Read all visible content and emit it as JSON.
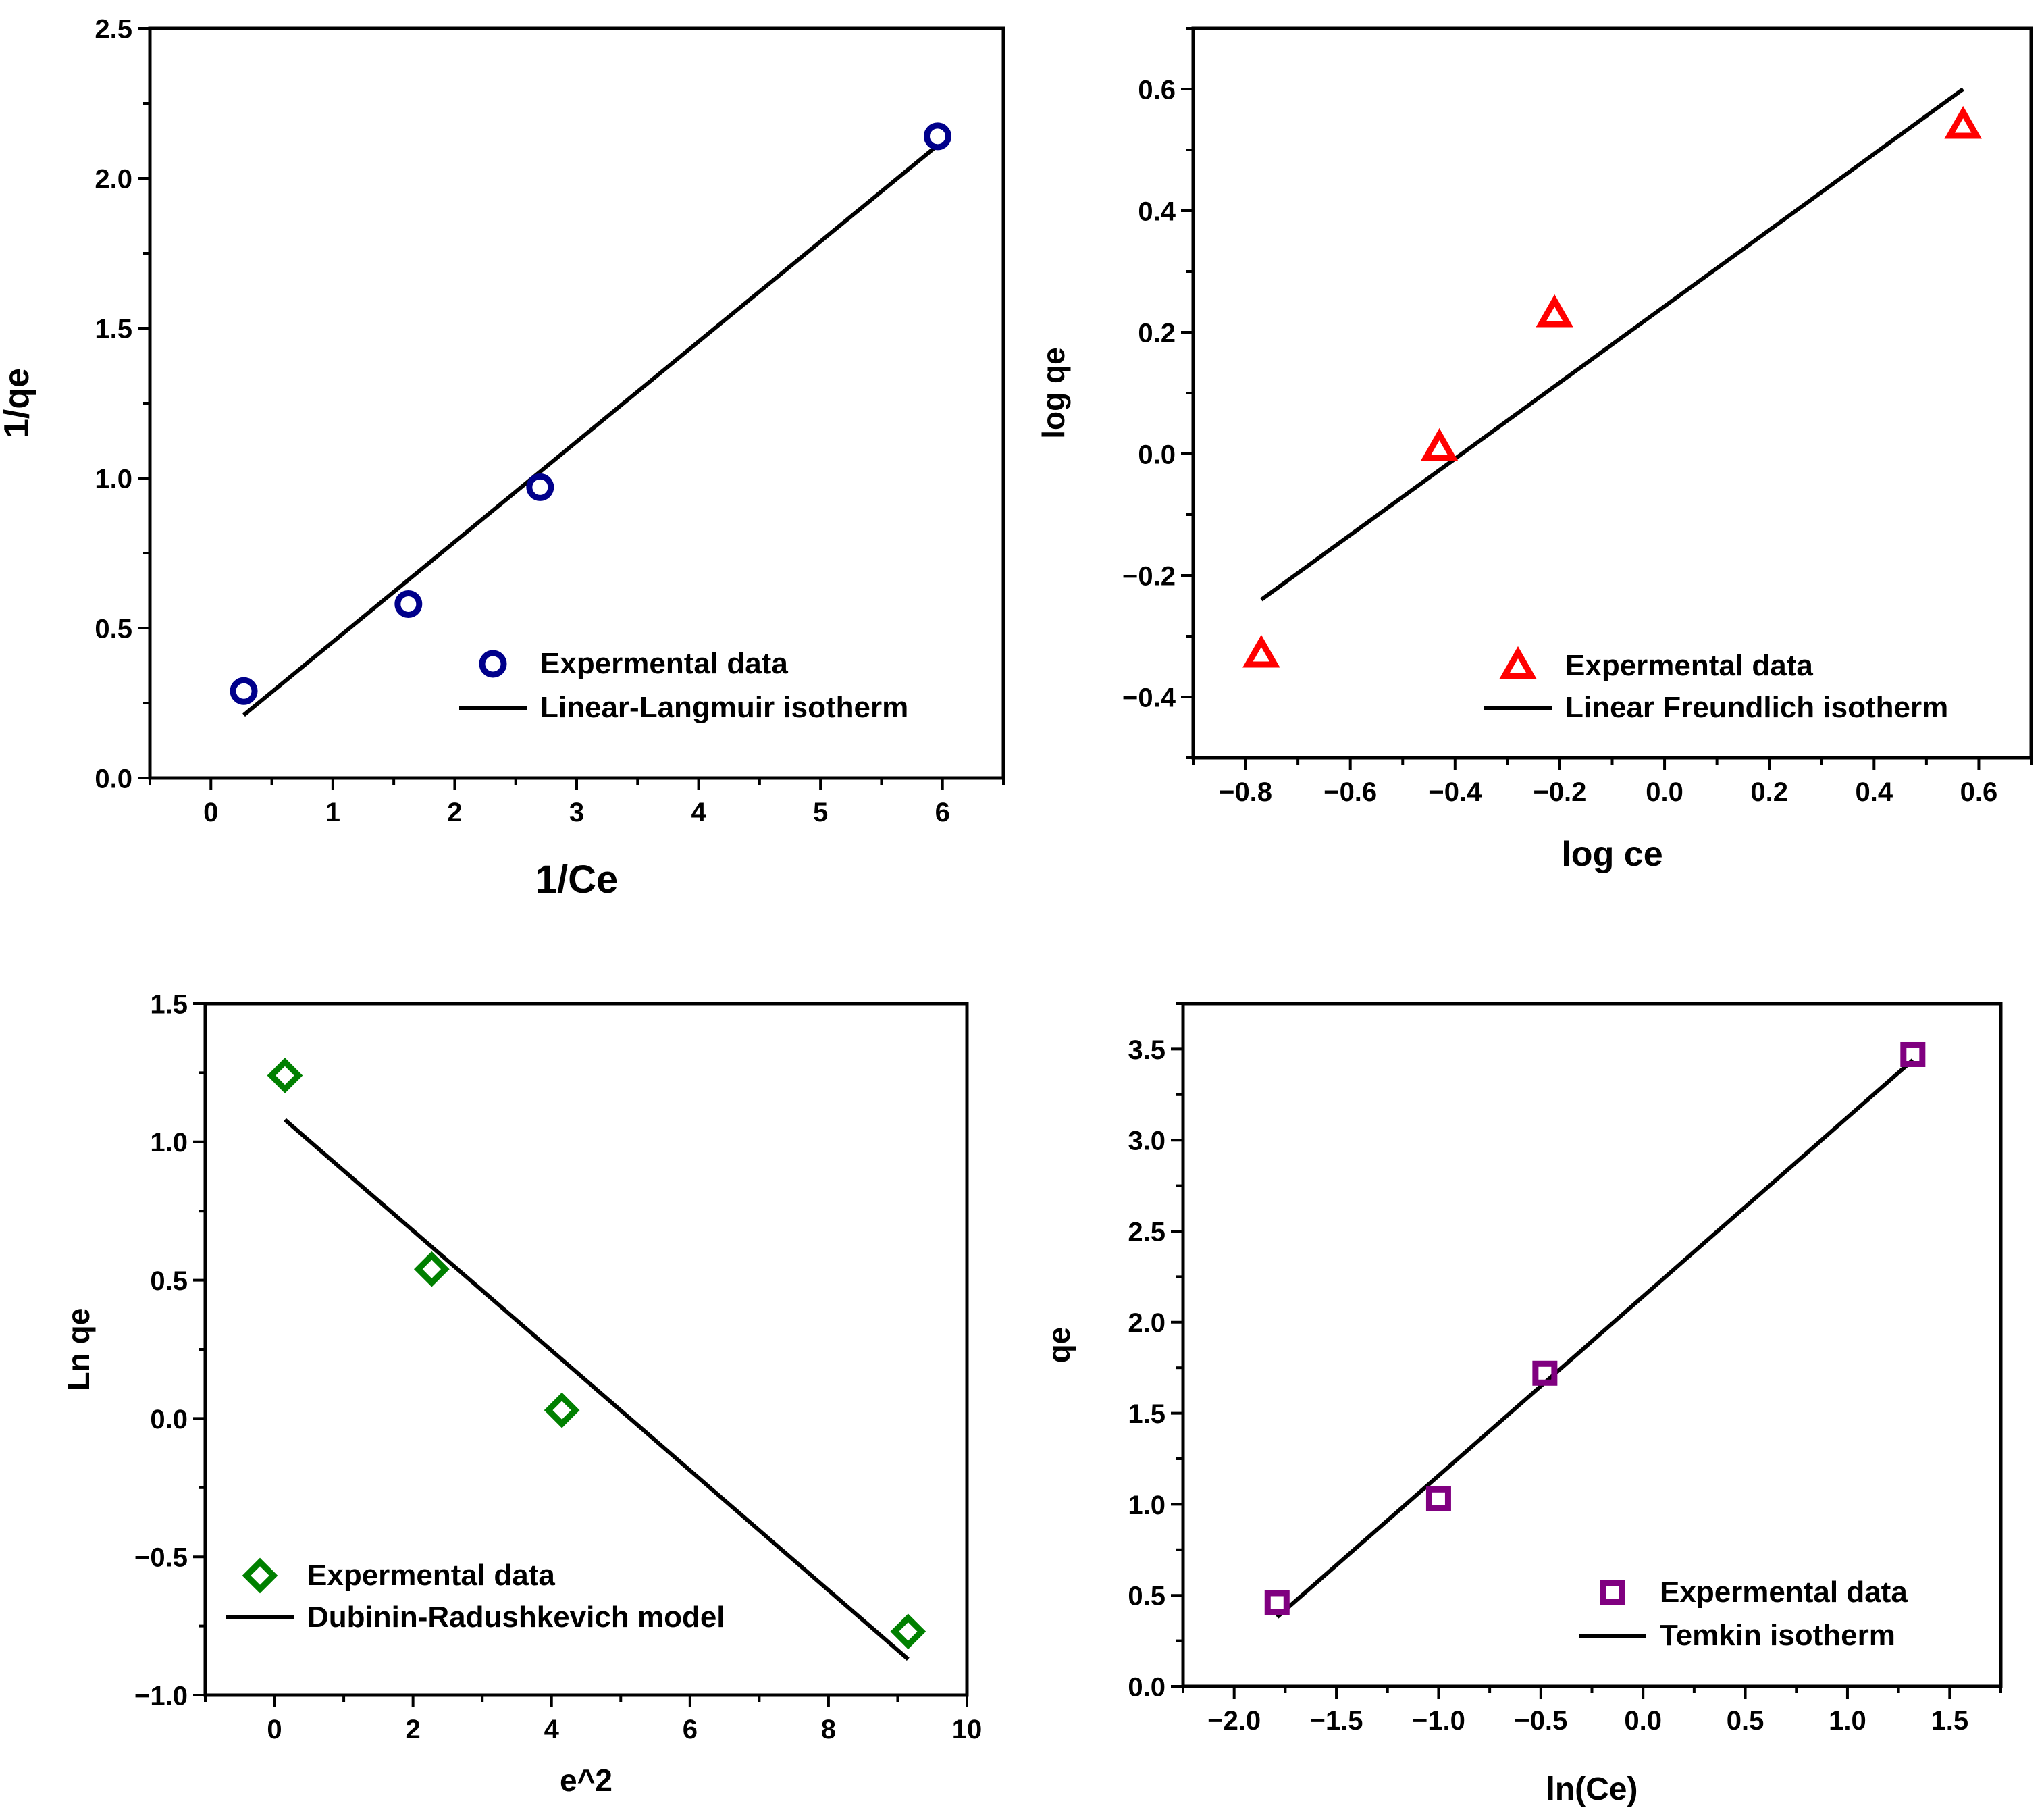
{
  "chart_data": [
    {
      "type": "scatter",
      "title": "",
      "xlabel": "1/Ce",
      "ylabel": "1/qe",
      "xlim": [
        -0.5,
        6.5
      ],
      "ylim": [
        0.0,
        2.5
      ],
      "xticks": [
        0,
        1,
        2,
        3,
        4,
        5,
        6
      ],
      "yticks": [
        0.0,
        0.5,
        1.0,
        1.5,
        2.0,
        2.5
      ],
      "xtick_labels": [
        "0",
        "1",
        "2",
        "3",
        "4",
        "5",
        "6"
      ],
      "ytick_labels": [
        "0.0",
        "0.5",
        "1.0",
        "1.5",
        "2.0",
        "2.5"
      ],
      "marker": "circle",
      "color": "#00008b",
      "series": [
        {
          "name": "Expermental data",
          "kind": "points",
          "x": [
            0.27,
            1.62,
            2.7,
            5.96
          ],
          "y": [
            0.29,
            0.58,
            0.97,
            2.14
          ]
        },
        {
          "name": "Linear-Langmuir isotherm",
          "kind": "line",
          "x": [
            0.27,
            5.96
          ],
          "y": [
            0.21,
            2.11
          ]
        }
      ],
      "legend": [
        "Expermental data",
        "Linear-Langmuir isotherm"
      ],
      "legend_position": "bottom-right"
    },
    {
      "type": "scatter",
      "title": "",
      "xlabel": "log ce",
      "ylabel": "log qe",
      "xlim": [
        -0.9,
        0.7
      ],
      "ylim": [
        -0.5,
        0.7
      ],
      "xticks": [
        -0.8,
        -0.6,
        -0.4,
        -0.2,
        0.0,
        0.2,
        0.4,
        0.6
      ],
      "yticks": [
        -0.4,
        -0.2,
        0.0,
        0.2,
        0.4,
        0.6
      ],
      "xtick_labels": [
        "−0.8",
        "−0.6",
        "−0.4",
        "−0.2",
        "0.0",
        "0.2",
        "0.4",
        "0.6"
      ],
      "ytick_labels": [
        "−0.4",
        "−0.2",
        "0.0",
        "0.2",
        "0.4",
        "0.6"
      ],
      "marker": "triangle",
      "color": "#ff0000",
      "series": [
        {
          "name": "Expermental data",
          "kind": "points",
          "x": [
            -0.77,
            -0.43,
            -0.21,
            0.57
          ],
          "y": [
            -0.33,
            0.01,
            0.23,
            0.54
          ]
        },
        {
          "name": "Linear Freundlich isotherm",
          "kind": "line",
          "x": [
            -0.77,
            0.57
          ],
          "y": [
            -0.24,
            0.6
          ]
        }
      ],
      "legend": [
        "Expermental data",
        "Linear Freundlich isotherm"
      ],
      "legend_position": "bottom-right"
    },
    {
      "type": "scatter",
      "title": "",
      "xlabel": "e^2",
      "ylabel": "Ln qe",
      "xlim": [
        -1.0,
        10.0
      ],
      "ylim": [
        -1.0,
        1.5
      ],
      "xticks": [
        0,
        2,
        4,
        6,
        8,
        10
      ],
      "yticks": [
        -1.0,
        -0.5,
        0.0,
        0.5,
        1.0,
        1.5
      ],
      "xtick_labels": [
        "0",
        "2",
        "4",
        "6",
        "8",
        "10"
      ],
      "ytick_labels": [
        "−1.0",
        "−0.5",
        "0.0",
        "0.5",
        "1.0",
        "1.5"
      ],
      "marker": "diamond",
      "color": "#008000",
      "series": [
        {
          "name": "Expermental data",
          "kind": "points",
          "x": [
            0.15,
            2.27,
            4.15,
            9.15
          ],
          "y": [
            1.24,
            0.54,
            0.03,
            -0.77
          ]
        },
        {
          "name": "Dubinin-Radushkevich model",
          "kind": "line",
          "x": [
            0.15,
            9.15
          ],
          "y": [
            1.08,
            -0.87
          ]
        }
      ],
      "legend": [
        "Expermental data",
        "Dubinin-Radushkevich model"
      ],
      "legend_position": "bottom-left"
    },
    {
      "type": "scatter",
      "title": "",
      "xlabel": "ln(Ce)",
      "ylabel": "qe",
      "xlim": [
        -2.25,
        1.75
      ],
      "ylim": [
        0.0,
        3.75
      ],
      "xticks": [
        -2.0,
        -1.5,
        -1.0,
        -0.5,
        0.0,
        0.5,
        1.0,
        1.5
      ],
      "yticks": [
        0.0,
        0.5,
        1.0,
        1.5,
        2.0,
        2.5,
        3.0,
        3.5
      ],
      "xtick_labels": [
        "−2.0",
        "−1.5",
        "−1.0",
        "−0.5",
        "0.0",
        "0.5",
        "1.0",
        "1.5"
      ],
      "ytick_labels": [
        "0.0",
        "0.5",
        "1.0",
        "1.5",
        "2.0",
        "2.5",
        "3.0",
        "3.5"
      ],
      "marker": "square",
      "color": "#800080",
      "series": [
        {
          "name": "Expermental data",
          "kind": "points",
          "x": [
            -1.79,
            -1.0,
            -0.48,
            1.32
          ],
          "y": [
            0.46,
            1.03,
            1.72,
            3.47
          ]
        },
        {
          "name": "Temkin isotherm",
          "kind": "line",
          "x": [
            -1.79,
            1.32
          ],
          "y": [
            0.38,
            3.44
          ]
        }
      ],
      "legend": [
        "Expermental data",
        "Temkin isotherm"
      ],
      "legend_position": "bottom-right"
    }
  ]
}
